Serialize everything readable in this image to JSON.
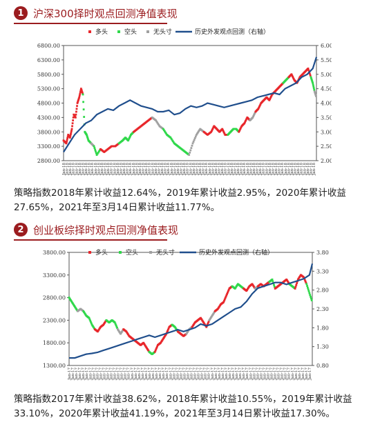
{
  "sections": [
    {
      "number": "1",
      "title": "沪深300择时观点回测净值表现",
      "paragraph": "策略指数2018年累计收益12.64%，2019年累计收益2.95%，2020年累计收益27.65%，2021年至3月14日累计收益11.77%。"
    },
    {
      "number": "2",
      "title": "创业板综择时观点回测净值表现",
      "paragraph": "策略指数2017年累计收益38.62%，2018年累计收益10.55%，2019年累计收益33.10%，2020年累计收益41.19%，2021年至3月14日累计收益17.30%。"
    }
  ],
  "chart_data": [
    {
      "type": "line",
      "legend": [
        "多头",
        "空头",
        "无头寸",
        "历史外发观点回测（右轴）"
      ],
      "colors": {
        "long": "#e8262b",
        "short": "#2fd84a",
        "none": "#a0a0a0",
        "backtest": "#1f4e8c"
      },
      "y_left": {
        "ticks": [
          "2800.00",
          "3300.00",
          "3800.00",
          "4300.00",
          "4800.00",
          "5300.00",
          "5800.00",
          "6300.00",
          "6800.00"
        ],
        "range": [
          2800,
          6800
        ]
      },
      "y_right": {
        "ticks": [
          "2.00",
          "2.50",
          "3.00",
          "3.50",
          "4.00",
          "4.50",
          "5.00",
          "5.50",
          "6.00"
        ],
        "range": [
          2.0,
          6.0
        ]
      },
      "index_series": {
        "x": [
          0,
          3,
          5,
          7,
          9,
          11,
          13,
          15,
          17,
          19,
          21,
          23,
          25,
          27,
          30,
          33,
          36,
          40,
          44,
          48,
          52,
          56,
          60,
          64,
          67,
          70,
          73,
          76,
          80,
          84,
          88,
          92,
          96,
          100,
          104,
          108,
          112,
          116,
          120,
          124,
          128,
          132,
          136,
          140,
          144,
          148,
          152,
          156,
          160,
          163,
          166,
          169,
          172,
          175,
          178,
          181,
          184,
          187,
          190,
          193,
          196,
          199,
          202,
          205,
          208,
          211,
          214,
          217,
          220,
          223,
          226,
          229,
          232,
          235,
          238,
          241,
          244,
          247,
          250,
          253,
          256,
          259,
          262,
          265,
          268,
          270,
          272,
          274
        ],
        "y": [
          3500,
          3400,
          3700,
          3600,
          3900,
          4400,
          4300,
          4800,
          5000,
          5300,
          5100,
          3800,
          3700,
          3500,
          3400,
          3300,
          3000,
          3200,
          3100,
          3200,
          3300,
          3300,
          3400,
          3500,
          3600,
          3500,
          3700,
          3800,
          3900,
          4000,
          4100,
          4200,
          4300,
          4200,
          4000,
          3900,
          3700,
          3600,
          3400,
          3300,
          3200,
          3100,
          3000,
          3400,
          3700,
          3900,
          3800,
          3700,
          3800,
          4000,
          3900,
          3800,
          3900,
          3700,
          3700,
          3800,
          3900,
          3900,
          3800,
          4000,
          4100,
          4300,
          4200,
          4300,
          4500,
          4600,
          4800,
          4900,
          5000,
          4900,
          5100,
          5200,
          5300,
          5400,
          5500,
          5600,
          5700,
          5800,
          5600,
          5500,
          5700,
          5800,
          5900,
          6000,
          5700,
          5500,
          5200,
          5000
        ],
        "states": [
          "long",
          "long",
          "long",
          "long",
          "long",
          "long",
          "long",
          "long",
          "long",
          "long",
          "short",
          "short",
          "short",
          "short",
          "none",
          "short",
          "short",
          "long",
          "long",
          "long",
          "long",
          "long",
          "short",
          "short",
          "short",
          "short",
          "short",
          "long",
          "long",
          "long",
          "long",
          "long",
          "none",
          "none",
          "none",
          "short",
          "short",
          "short",
          "short",
          "short",
          "short",
          "short",
          "none",
          "none",
          "none",
          "none",
          "long",
          "long",
          "long",
          "long",
          "long",
          "long",
          "long",
          "long",
          "short",
          "short",
          "short",
          "short",
          "long",
          "long",
          "long",
          "long",
          "none",
          "none",
          "long",
          "long",
          "long",
          "long",
          "long",
          "long",
          "long",
          "long",
          "long",
          "long",
          "short",
          "short",
          "long",
          "long",
          "long",
          "long",
          "long",
          "long",
          "long",
          "long",
          "short",
          "short",
          "none",
          "none"
        ]
      },
      "backtest_series": {
        "x": [
          0,
          6,
          12,
          18,
          24,
          30,
          36,
          42,
          48,
          54,
          60,
          66,
          72,
          78,
          84,
          90,
          96,
          102,
          108,
          114,
          120,
          126,
          132,
          138,
          144,
          150,
          156,
          162,
          168,
          174,
          180,
          186,
          192,
          198,
          204,
          210,
          216,
          222,
          228,
          234,
          240,
          246,
          252,
          258,
          264,
          270,
          274
        ],
        "y": [
          2.3,
          2.6,
          2.9,
          3.1,
          3.3,
          3.4,
          3.6,
          3.7,
          3.8,
          3.75,
          3.9,
          4.0,
          4.1,
          4.0,
          3.9,
          3.85,
          3.8,
          3.7,
          3.7,
          3.75,
          3.6,
          3.65,
          3.8,
          3.9,
          3.85,
          3.9,
          4.0,
          3.95,
          3.9,
          3.85,
          3.9,
          3.95,
          4.0,
          4.05,
          4.1,
          4.2,
          4.25,
          4.3,
          4.35,
          4.3,
          4.5,
          4.6,
          4.7,
          4.9,
          5.0,
          5.2,
          5.6
        ]
      },
      "x_tick_label": "Jan-18"
    },
    {
      "type": "line",
      "legend": [
        "多头",
        "空头",
        "无头寸",
        "历史外发观点回测（右轴）"
      ],
      "colors": {
        "long": "#e8262b",
        "short": "#2fd84a",
        "none": "#a0a0a0",
        "backtest": "#1f4e8c"
      },
      "y_left": {
        "ticks": [
          "1300.00",
          "1800.00",
          "2300.00",
          "2800.00",
          "3300.00",
          "3800.00"
        ],
        "range": [
          1300,
          3800
        ]
      },
      "y_right": {
        "ticks": [
          "0.80",
          "1.30",
          "1.80",
          "2.30",
          "2.80",
          "3.30",
          "3.80"
        ],
        "range": [
          0.8,
          3.8
        ]
      },
      "index_series": {
        "x": [
          0,
          4,
          8,
          12,
          16,
          20,
          24,
          28,
          32,
          36,
          40,
          44,
          48,
          52,
          56,
          60,
          64,
          68,
          72,
          76,
          80,
          84,
          88,
          92,
          96,
          100,
          104,
          108,
          112,
          116,
          120,
          124,
          128,
          132,
          136,
          140,
          144,
          148,
          152,
          156,
          160,
          164,
          168,
          172,
          176,
          180,
          184,
          188,
          192,
          196,
          200,
          204,
          208,
          212,
          216,
          220,
          224,
          228,
          232,
          236,
          240,
          244,
          248,
          252,
          256,
          260,
          264,
          268,
          272,
          276,
          280,
          284,
          288,
          292,
          296,
          300,
          304,
          308,
          312,
          316,
          320,
          324,
          328,
          332,
          336,
          340
        ],
        "y": [
          2800,
          2700,
          2600,
          2500,
          2550,
          2500,
          2400,
          2350,
          2200,
          2100,
          2050,
          2150,
          2200,
          2300,
          2250,
          2300,
          2250,
          2100,
          2000,
          2100,
          2050,
          1950,
          1900,
          1850,
          1800,
          1750,
          1800,
          1700,
          1600,
          1550,
          1600,
          1750,
          1800,
          1900,
          2000,
          2150,
          2200,
          2150,
          2050,
          2000,
          1950,
          2000,
          2100,
          2150,
          2250,
          2300,
          2350,
          2250,
          2150,
          2300,
          2400,
          2500,
          2550,
          2650,
          2700,
          2850,
          3000,
          3050,
          3000,
          3100,
          3050,
          3000,
          2950,
          3050,
          3100,
          3000,
          3050,
          3100,
          3050,
          3100,
          3150,
          3200,
          3000,
          3050,
          3100,
          3150,
          3200,
          3100,
          3050,
          3000,
          3200,
          3300,
          3250,
          3100,
          2900,
          2700
        ],
        "states": [
          "short",
          "short",
          "short",
          "none",
          "none",
          "short",
          "short",
          "short",
          "short",
          "long",
          "long",
          "long",
          "long",
          "short",
          "short",
          "short",
          "short",
          "none",
          "none",
          "long",
          "long",
          "long",
          "long",
          "long",
          "long",
          "long",
          "long",
          "long",
          "short",
          "short",
          "long",
          "long",
          "long",
          "long",
          "long",
          "long",
          "short",
          "short",
          "long",
          "long",
          "long",
          "none",
          "none",
          "long",
          "long",
          "long",
          "long",
          "long",
          "long",
          "none",
          "none",
          "long",
          "long",
          "long",
          "long",
          "long",
          "long",
          "short",
          "short",
          "short",
          "short",
          "long",
          "long",
          "long",
          "long",
          "none",
          "long",
          "long",
          "long",
          "long",
          "short",
          "short",
          "long",
          "long",
          "long",
          "long",
          "long",
          "short",
          "short",
          "long",
          "long",
          "long",
          "long",
          "short",
          "short",
          "short"
        ]
      },
      "backtest_series": {
        "x": [
          0,
          8,
          16,
          24,
          32,
          40,
          48,
          56,
          64,
          72,
          80,
          88,
          96,
          104,
          112,
          120,
          128,
          136,
          144,
          152,
          160,
          168,
          176,
          184,
          192,
          200,
          208,
          216,
          224,
          232,
          240,
          248,
          256,
          264,
          272,
          280,
          288,
          296,
          304,
          312,
          320,
          328,
          336,
          340
        ],
        "y": [
          1.0,
          1.0,
          1.05,
          1.1,
          1.12,
          1.15,
          1.2,
          1.25,
          1.3,
          1.35,
          1.4,
          1.45,
          1.5,
          1.55,
          1.6,
          1.55,
          1.6,
          1.65,
          1.7,
          1.75,
          1.7,
          1.75,
          1.8,
          1.9,
          1.85,
          1.9,
          2.0,
          2.1,
          2.2,
          2.3,
          2.35,
          2.5,
          2.7,
          2.85,
          2.9,
          2.95,
          3.0,
          3.0,
          2.95,
          3.0,
          3.05,
          3.1,
          3.2,
          3.5
        ]
      },
      "x_tick_label": "Jan-17"
    }
  ]
}
